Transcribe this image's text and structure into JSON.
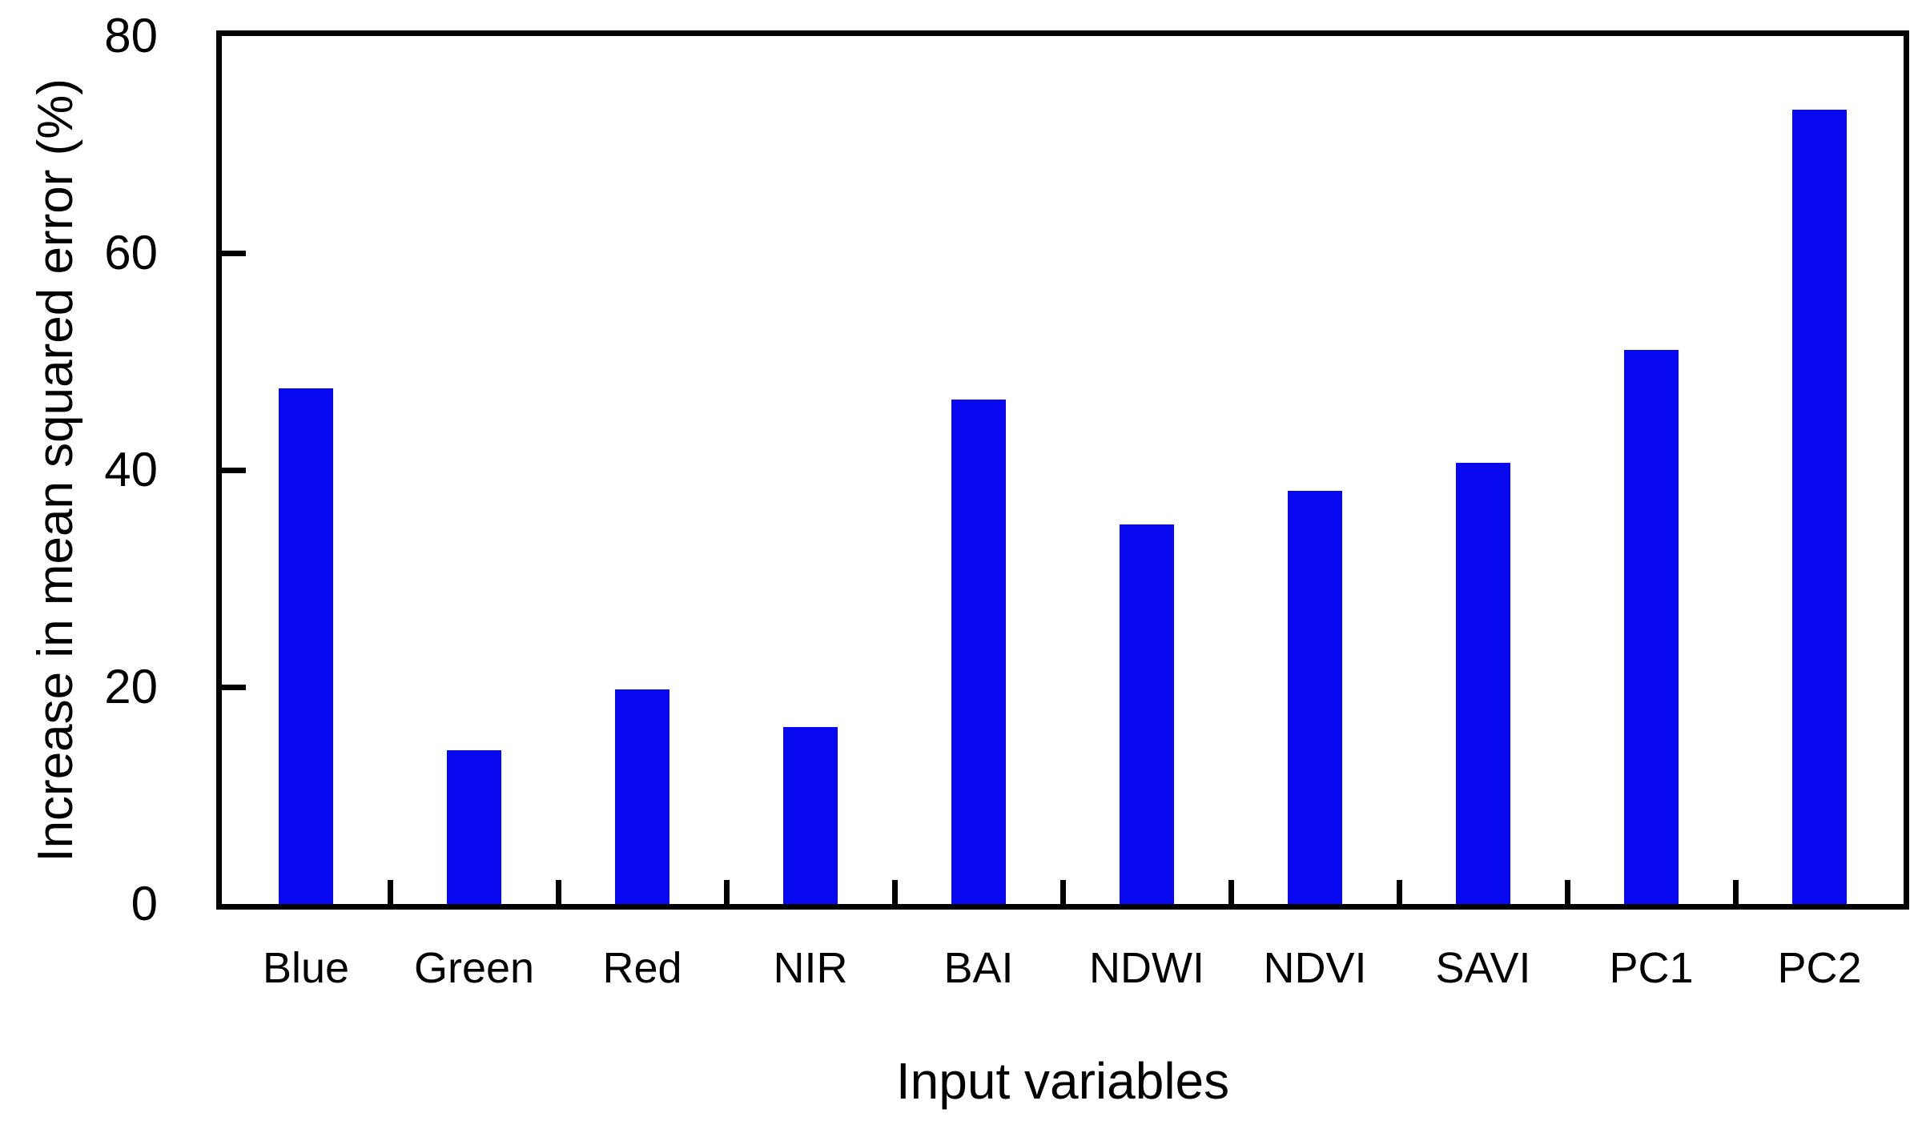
{
  "figure": {
    "background_color": "#ffffff",
    "axis_color": "#000000",
    "text_color": "#000000",
    "bar_color": "#0707f0"
  },
  "chart_data": {
    "type": "bar",
    "title": "",
    "xlabel": "Input variables",
    "ylabel": "Increase in mean squared error (%)",
    "categories": [
      "Blue",
      "Green",
      "Red",
      "NIR",
      "BAI",
      "NDWI",
      "NDVI",
      "SAVI",
      "PC1",
      "PC2"
    ],
    "values": [
      47.5,
      14.2,
      19.8,
      16.3,
      46.5,
      35.0,
      38.1,
      40.7,
      51.1,
      73.2
    ],
    "ylim": [
      0,
      80
    ],
    "yticks": [
      0,
      20,
      40,
      60,
      80
    ],
    "grid": false,
    "legend_position": "none",
    "frame": "full-box",
    "tick_direction": "in"
  }
}
